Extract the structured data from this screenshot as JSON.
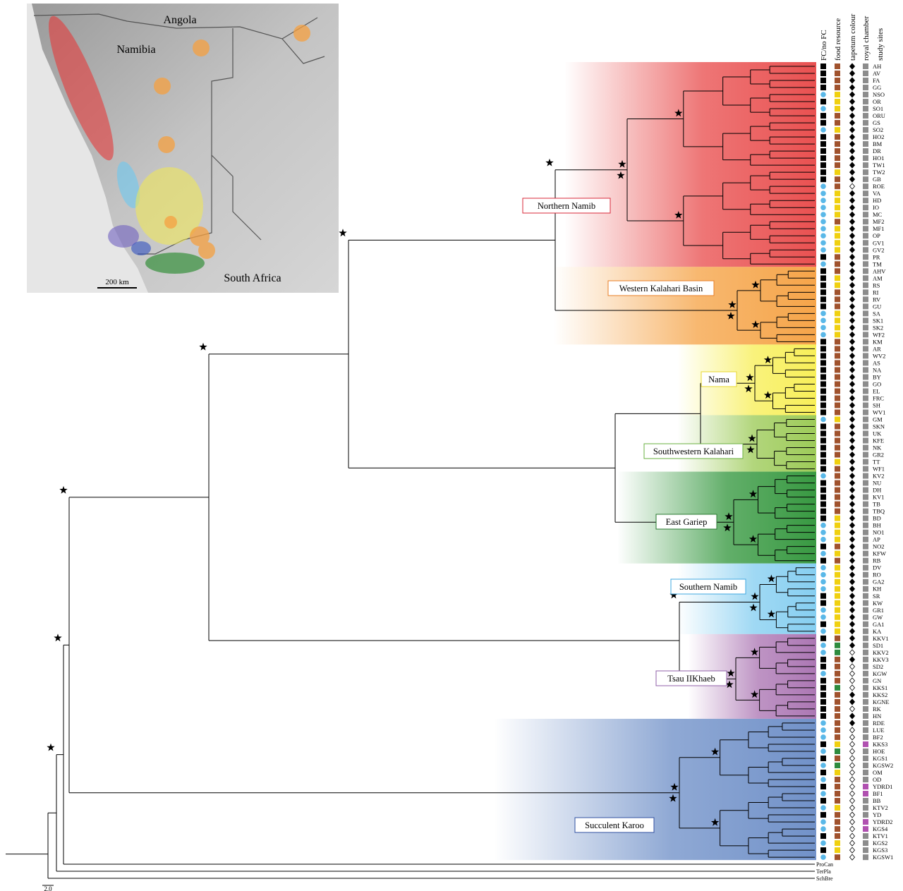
{
  "map": {
    "labels": [
      "Angola",
      "Namibia",
      "South Africa"
    ],
    "scale_bar": "200 km"
  },
  "columns": [
    "FC/no FC",
    "food resource",
    "tapetum colour",
    "royal chamber",
    "study sites"
  ],
  "clades": [
    "Northern Namib",
    "Western Kalahari Basin",
    "Nama",
    "Southwestern Kalahari",
    "East Gariep",
    "Southern Namib",
    "Tsau IIKhaeb",
    "Succulent Karoo"
  ],
  "tips": [
    "AH",
    "AV",
    "FA",
    "GG",
    "NSO",
    "OR",
    "SO1",
    "ORU",
    "GS",
    "SO2",
    "HO2",
    "BM",
    "DR",
    "HO1",
    "TW1",
    "TW2",
    "GB",
    "ROE",
    "VA",
    "HD",
    "IO",
    "MC",
    "MF2",
    "MF1",
    "OP",
    "GV1",
    "GV2",
    "PR",
    "TM",
    "AHV",
    "AM",
    "RS",
    "RI",
    "RV",
    "GU",
    "SA",
    "SK1",
    "SK2",
    "WF2",
    "KM",
    "AR",
    "WV2",
    "AS",
    "NA",
    "BY",
    "GO",
    "EL",
    "FRC",
    "SH",
    "WV1",
    "GM",
    "SKN",
    "UK",
    "KFE",
    "NK",
    "GR2",
    "TT",
    "WF1",
    "KV2",
    "NU",
    "DH",
    "KV1",
    "TB",
    "TBQ",
    "BD",
    "BH",
    "NO1",
    "AP",
    "NO2",
    "KFW",
    "RB",
    "DV",
    "RO",
    "GA2",
    "KH",
    "SR",
    "KW",
    "GR1",
    "GW",
    "GA1",
    "KA",
    "KKV1",
    "SD1",
    "KKV2",
    "KKV3",
    "SD2",
    "KGW",
    "GN",
    "KKS1",
    "KKS2",
    "KGNE",
    "RK",
    "HN",
    "RDE",
    "LUE",
    "BF2",
    "KKS3",
    "HOE",
    "KGS1",
    "KGSW2",
    "OM",
    "OD",
    "YDRD1",
    "BF1",
    "BB",
    "KTV2",
    "YD",
    "YDRD2",
    "KGS4",
    "KTV1",
    "KGS2",
    "KGS3",
    "KGSW1"
  ],
  "outgroups": [
    "ProCan",
    "TerPla",
    "SchBre"
  ],
  "scale": "2.0"
}
